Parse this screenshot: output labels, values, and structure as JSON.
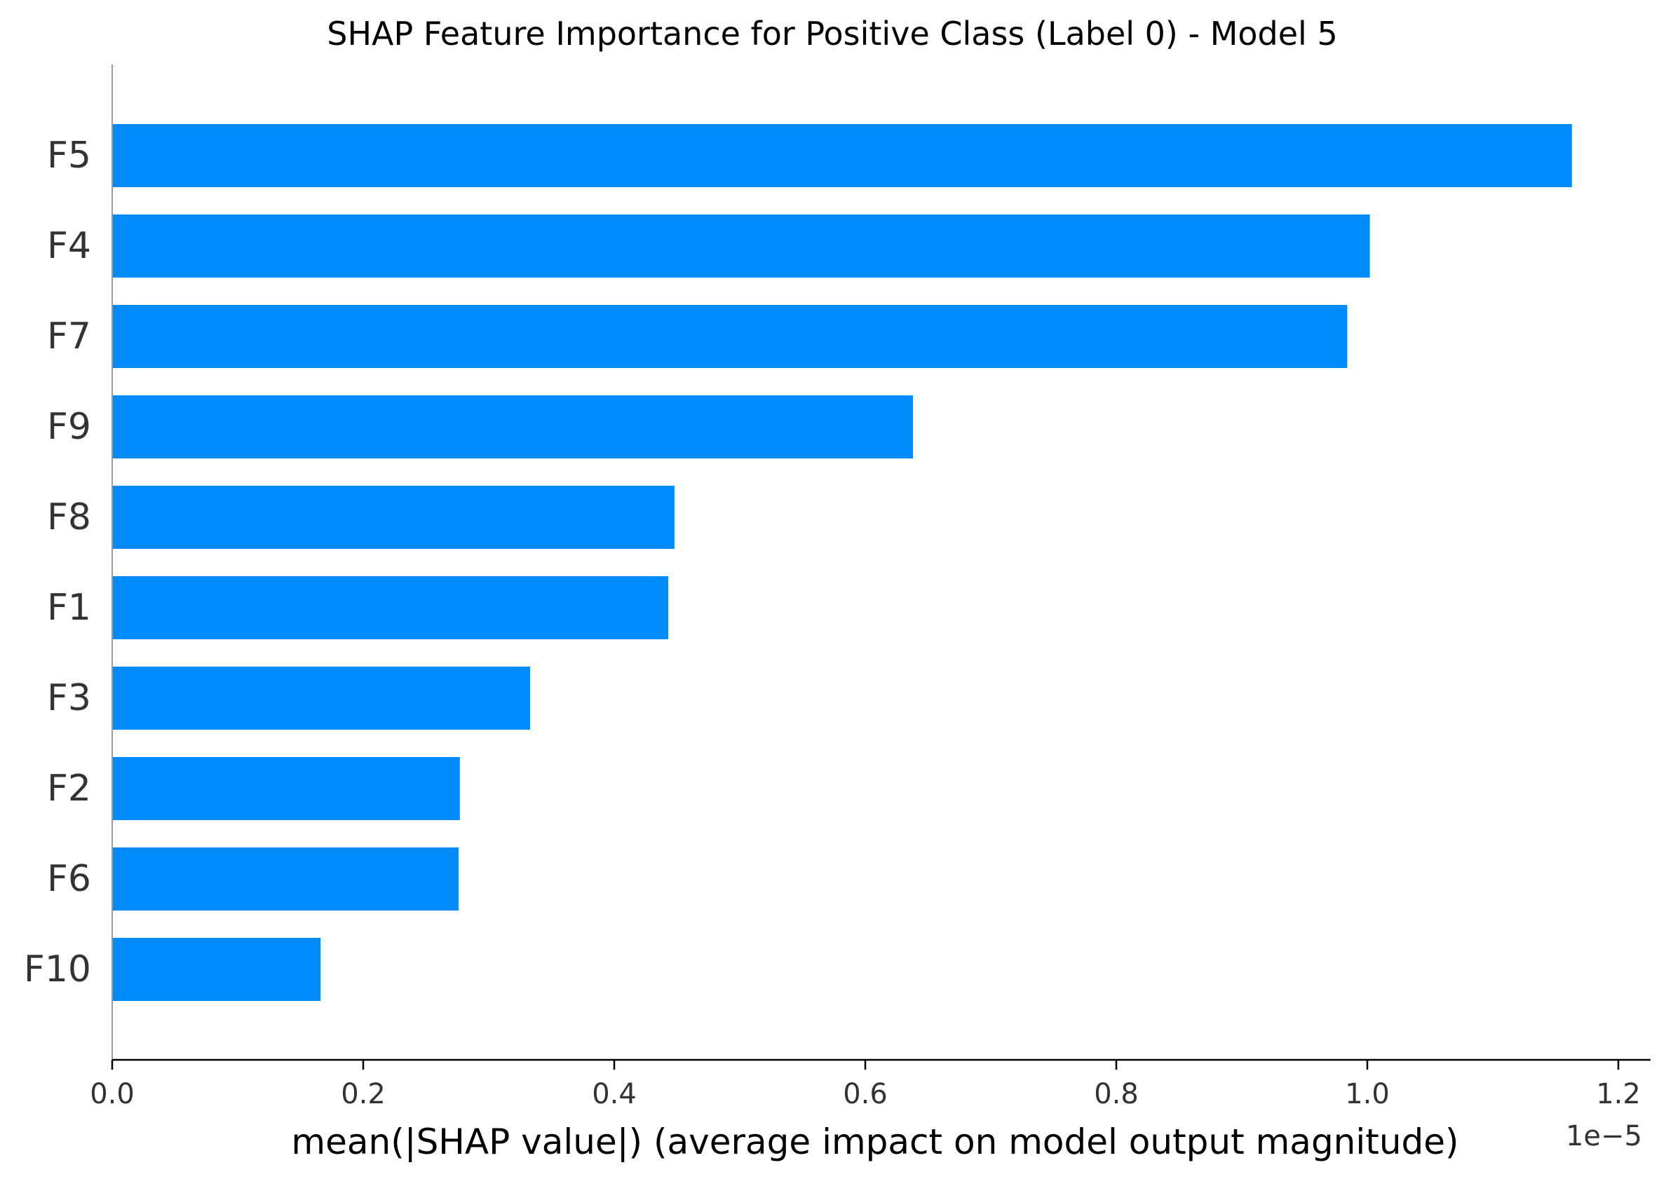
{
  "chart_data": {
    "type": "bar",
    "orientation": "horizontal",
    "title": "SHAP Feature Importance for Positive Class (Label 0) - Model 5",
    "xlabel": "mean(|SHAP value|) (average impact on model output magnitude)",
    "ylabel": "",
    "axis_offset_label": "1e−5",
    "categories": [
      "F5",
      "F4",
      "F7",
      "F9",
      "F8",
      "F1",
      "F3",
      "F2",
      "F6",
      "F10"
    ],
    "values": [
      1.163,
      1.002,
      0.984,
      0.638,
      0.448,
      0.443,
      0.333,
      0.277,
      0.276,
      0.166
    ],
    "value_scale": 1e-05,
    "xlim": [
      0,
      1.22
    ],
    "xticks": [
      0.0,
      0.2,
      0.4,
      0.6,
      0.8,
      1.0,
      1.2
    ],
    "xtick_labels": [
      "0.0",
      "0.2",
      "0.4",
      "0.6",
      "0.8",
      "1.0",
      "1.2"
    ],
    "bar_color": "#008bfb",
    "grid": false,
    "legend": "none"
  }
}
